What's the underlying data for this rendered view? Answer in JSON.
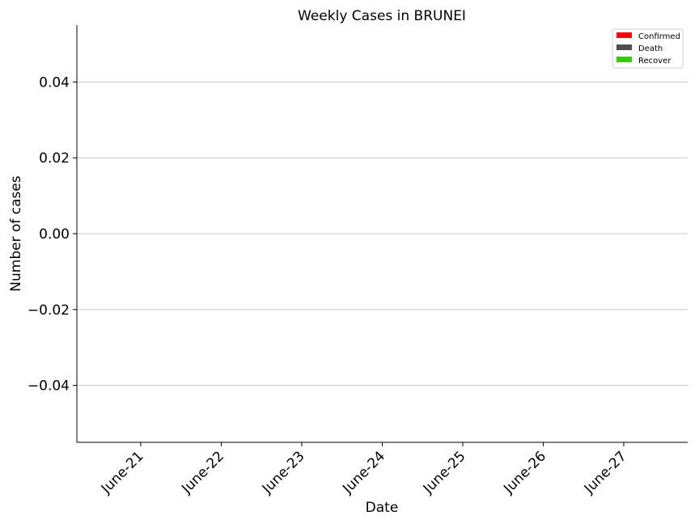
{
  "chart_data": {
    "type": "bar",
    "title": "Weekly Cases in BRUNEI",
    "xlabel": "Date",
    "ylabel": "Number of cases",
    "categories": [
      "June-21",
      "June-22",
      "June-23",
      "June-24",
      "June-25",
      "June-26",
      "June-27"
    ],
    "series": [
      {
        "name": "Confirmed",
        "color": "#ff0000",
        "values": [
          0,
          0,
          0,
          0,
          0,
          0,
          0
        ]
      },
      {
        "name": "Death",
        "color": "#4d4d4d",
        "values": [
          0,
          0,
          0,
          0,
          0,
          0,
          0
        ]
      },
      {
        "name": "Recover",
        "color": "#33cc00",
        "values": [
          0,
          0,
          0,
          0,
          0,
          0,
          0
        ]
      }
    ],
    "ylim": [
      -0.055,
      0.055
    ],
    "yticks": [
      0.04,
      0.02,
      0.0,
      -0.02,
      -0.04
    ],
    "ytick_labels": [
      "0.04",
      "0.02",
      "0.00",
      "−0.02",
      "−0.04"
    ],
    "grid": "horizontal",
    "legend_position": "top-right"
  }
}
